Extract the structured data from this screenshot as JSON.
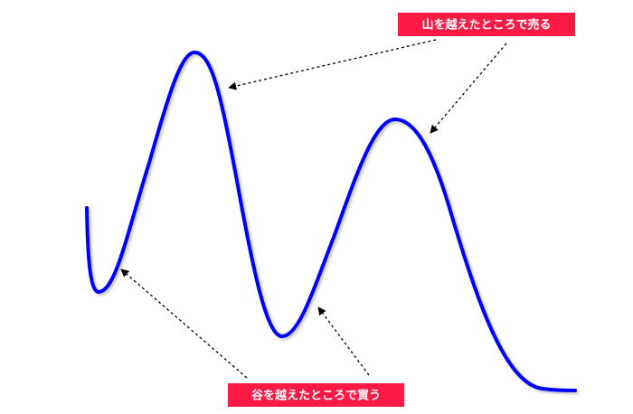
{
  "labels": {
    "sell": "山を越えたところで売る",
    "buy": "谷を越えたところで買う"
  }
}
